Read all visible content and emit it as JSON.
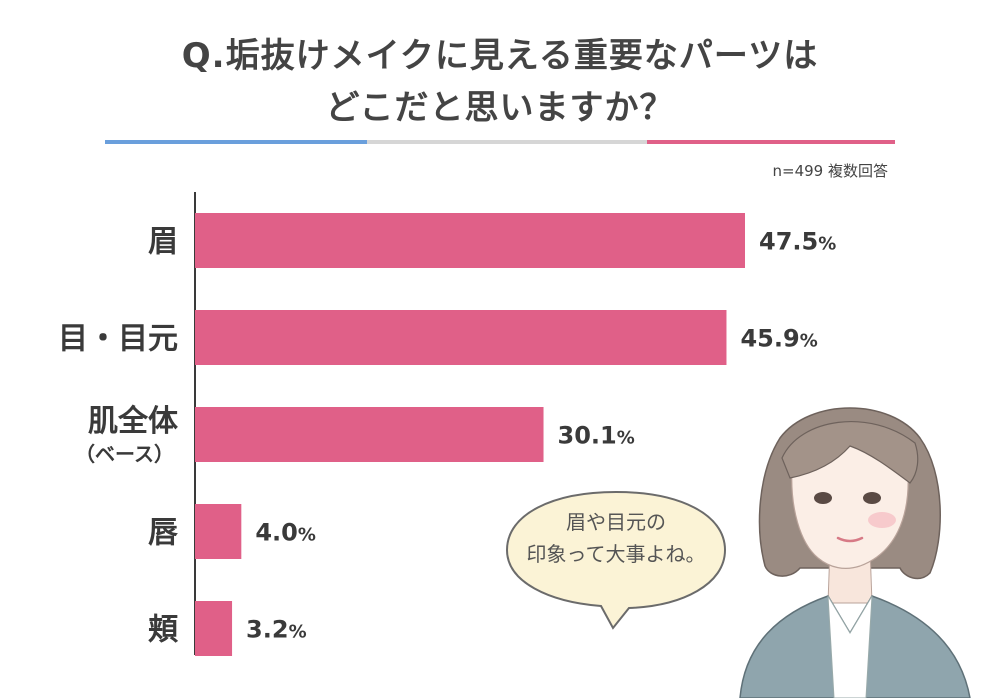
{
  "title_lines": [
    "Q.垢抜けメイクに見える重要なパーツは",
    "どこだと思いますか？"
  ],
  "note": "n=499  複数回答",
  "speech_bubble": [
    "眉や目元の",
    "印象って大事よね。"
  ],
  "colors": {
    "bar": "#e06088",
    "rule_blue": "#6a9fdc",
    "rule_gray": "#d6d6d6",
    "rule_pink": "#e06088",
    "bubble_fill": "#fbf3d6"
  },
  "chart_data": {
    "type": "bar",
    "orientation": "horizontal",
    "categories": [
      [
        "眉"
      ],
      [
        "目・目元"
      ],
      [
        "肌全体",
        "（ベース）"
      ],
      [
        "唇"
      ],
      [
        "頬"
      ]
    ],
    "values": [
      47.5,
      45.9,
      30.1,
      4.0,
      3.2
    ],
    "value_labels": [
      "47.5",
      "45.9",
      "30.1",
      "4.0",
      "3.2"
    ],
    "unit": "%",
    "xlim": [
      0,
      50
    ]
  }
}
